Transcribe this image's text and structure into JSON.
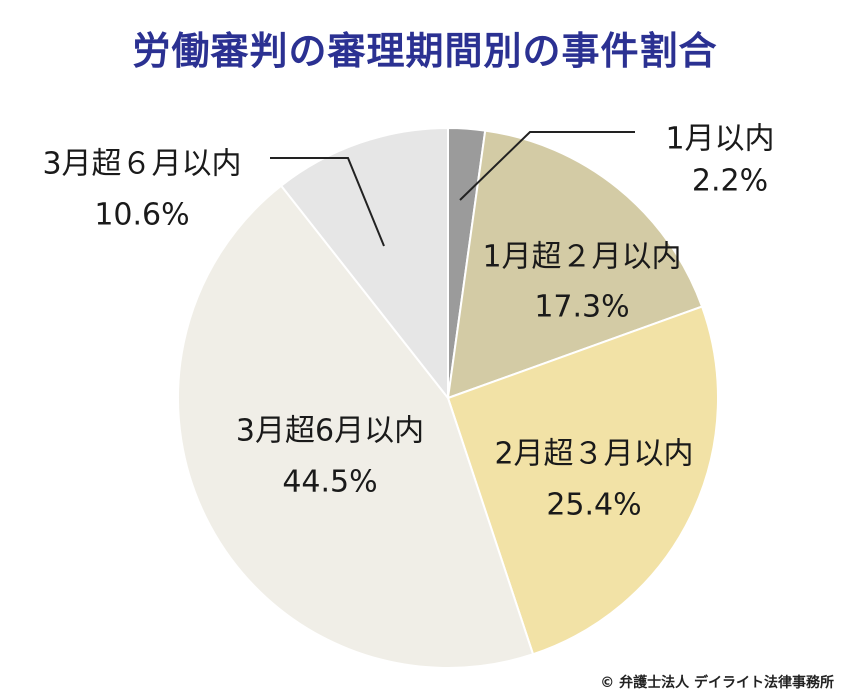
{
  "title": "労働審判の審理期間別の事件割合",
  "credit": "© 弁護士法人 デイライト法律事務所",
  "colors": {
    "title": "#2b3192",
    "leader_line": "#222222"
  },
  "chart_data": {
    "type": "pie",
    "title": "労働審判の審理期間別の事件割合",
    "start": "top",
    "direction": "clockwise",
    "legend": "none",
    "slices": [
      {
        "label": "1月以内",
        "value": 2.2,
        "value_label": "2.2%",
        "color": "#9b9b9b"
      },
      {
        "label": "1月超２月以内",
        "value": 17.3,
        "value_label": "17.3%",
        "color": "#d3cba5"
      },
      {
        "label": "2月超３月以内",
        "value": 25.4,
        "value_label": "25.4%",
        "color": "#f2e2a6"
      },
      {
        "label": "3月超6月以内",
        "value": 44.5,
        "value_label": "44.5%",
        "color": "#f0eee7"
      },
      {
        "label": "3月超６月以内",
        "value": 10.6,
        "value_label": "10.6%",
        "color": "#e6e6e6"
      }
    ]
  }
}
